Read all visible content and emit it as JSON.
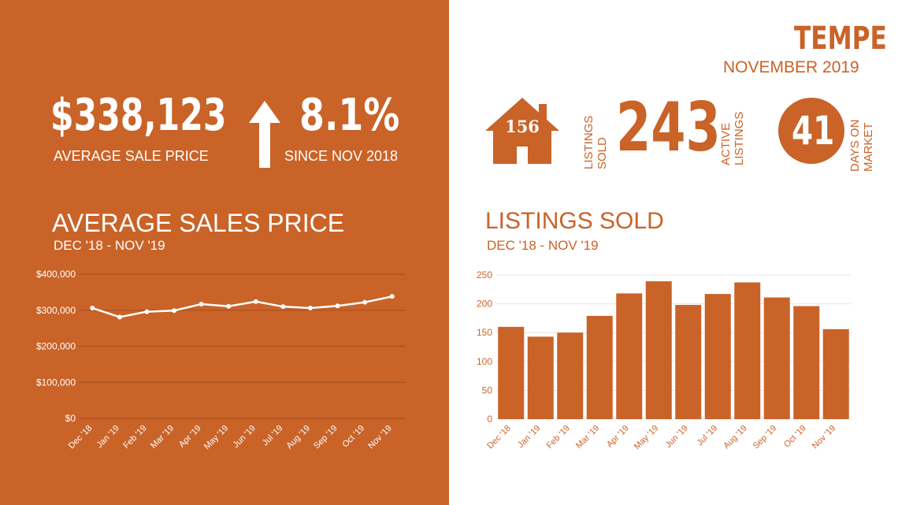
{
  "city": {
    "name": "TEMPE",
    "period": "NOVEMBER 2019"
  },
  "kpis": {
    "avg_price": {
      "value": "$338,123",
      "label": "AVERAGE  SALE PRICE"
    },
    "change": {
      "value": "8.1%",
      "label": "SINCE NOV 2018"
    },
    "listings_sold": {
      "value": "156",
      "label_1": "LISTINGS",
      "label_2": "SOLD"
    },
    "active_listings": {
      "value": "243",
      "label_1": "ACTIVE",
      "label_2": "LISTINGS"
    },
    "days_on_market": {
      "value": "41",
      "label_1": "DAYS ON",
      "label_2": "MARKET"
    }
  },
  "icons": {
    "house": "house-icon",
    "arrow": "arrow-up-icon",
    "circle": "circle-badge"
  },
  "colors": {
    "accent": "#c96328",
    "white": "#ffffff"
  },
  "chart_data": [
    {
      "type": "line",
      "title": "AVERAGE SALES PRICE",
      "subtitle": "DEC '18 - NOV '19",
      "categories": [
        "Dec '18",
        "Jan '19",
        "Feb '19",
        "Mar '19",
        "Apr '19",
        "May '19",
        "Jun '19",
        "Jul '19",
        "Aug '19",
        "Sep '19",
        "Oct '19",
        "Nov '19"
      ],
      "values": [
        306000,
        281000,
        296000,
        299000,
        317000,
        311000,
        324000,
        310000,
        306000,
        312000,
        322000,
        338123
      ],
      "y_ticks": [
        "$0",
        "$100,000",
        "$200,000",
        "$300,000",
        "$400,000"
      ],
      "ylim": [
        0,
        400000
      ],
      "grid": true
    },
    {
      "type": "bar",
      "title": "LISTINGS SOLD",
      "subtitle": "DEC '18 - NOV '19",
      "categories": [
        "Dec '18",
        "Jan '19",
        "Feb '19",
        "Mar '19",
        "Apr '19",
        "May '19",
        "Jun '19",
        "Jul '19",
        "Aug '19",
        "Sep '19",
        "Oct '19",
        "Nov '19"
      ],
      "values": [
        160,
        143,
        150,
        179,
        218,
        239,
        198,
        217,
        237,
        211,
        196,
        156
      ],
      "y_ticks": [
        "0",
        "50",
        "100",
        "150",
        "200",
        "250"
      ],
      "ylim": [
        0,
        250
      ],
      "grid": true
    }
  ]
}
